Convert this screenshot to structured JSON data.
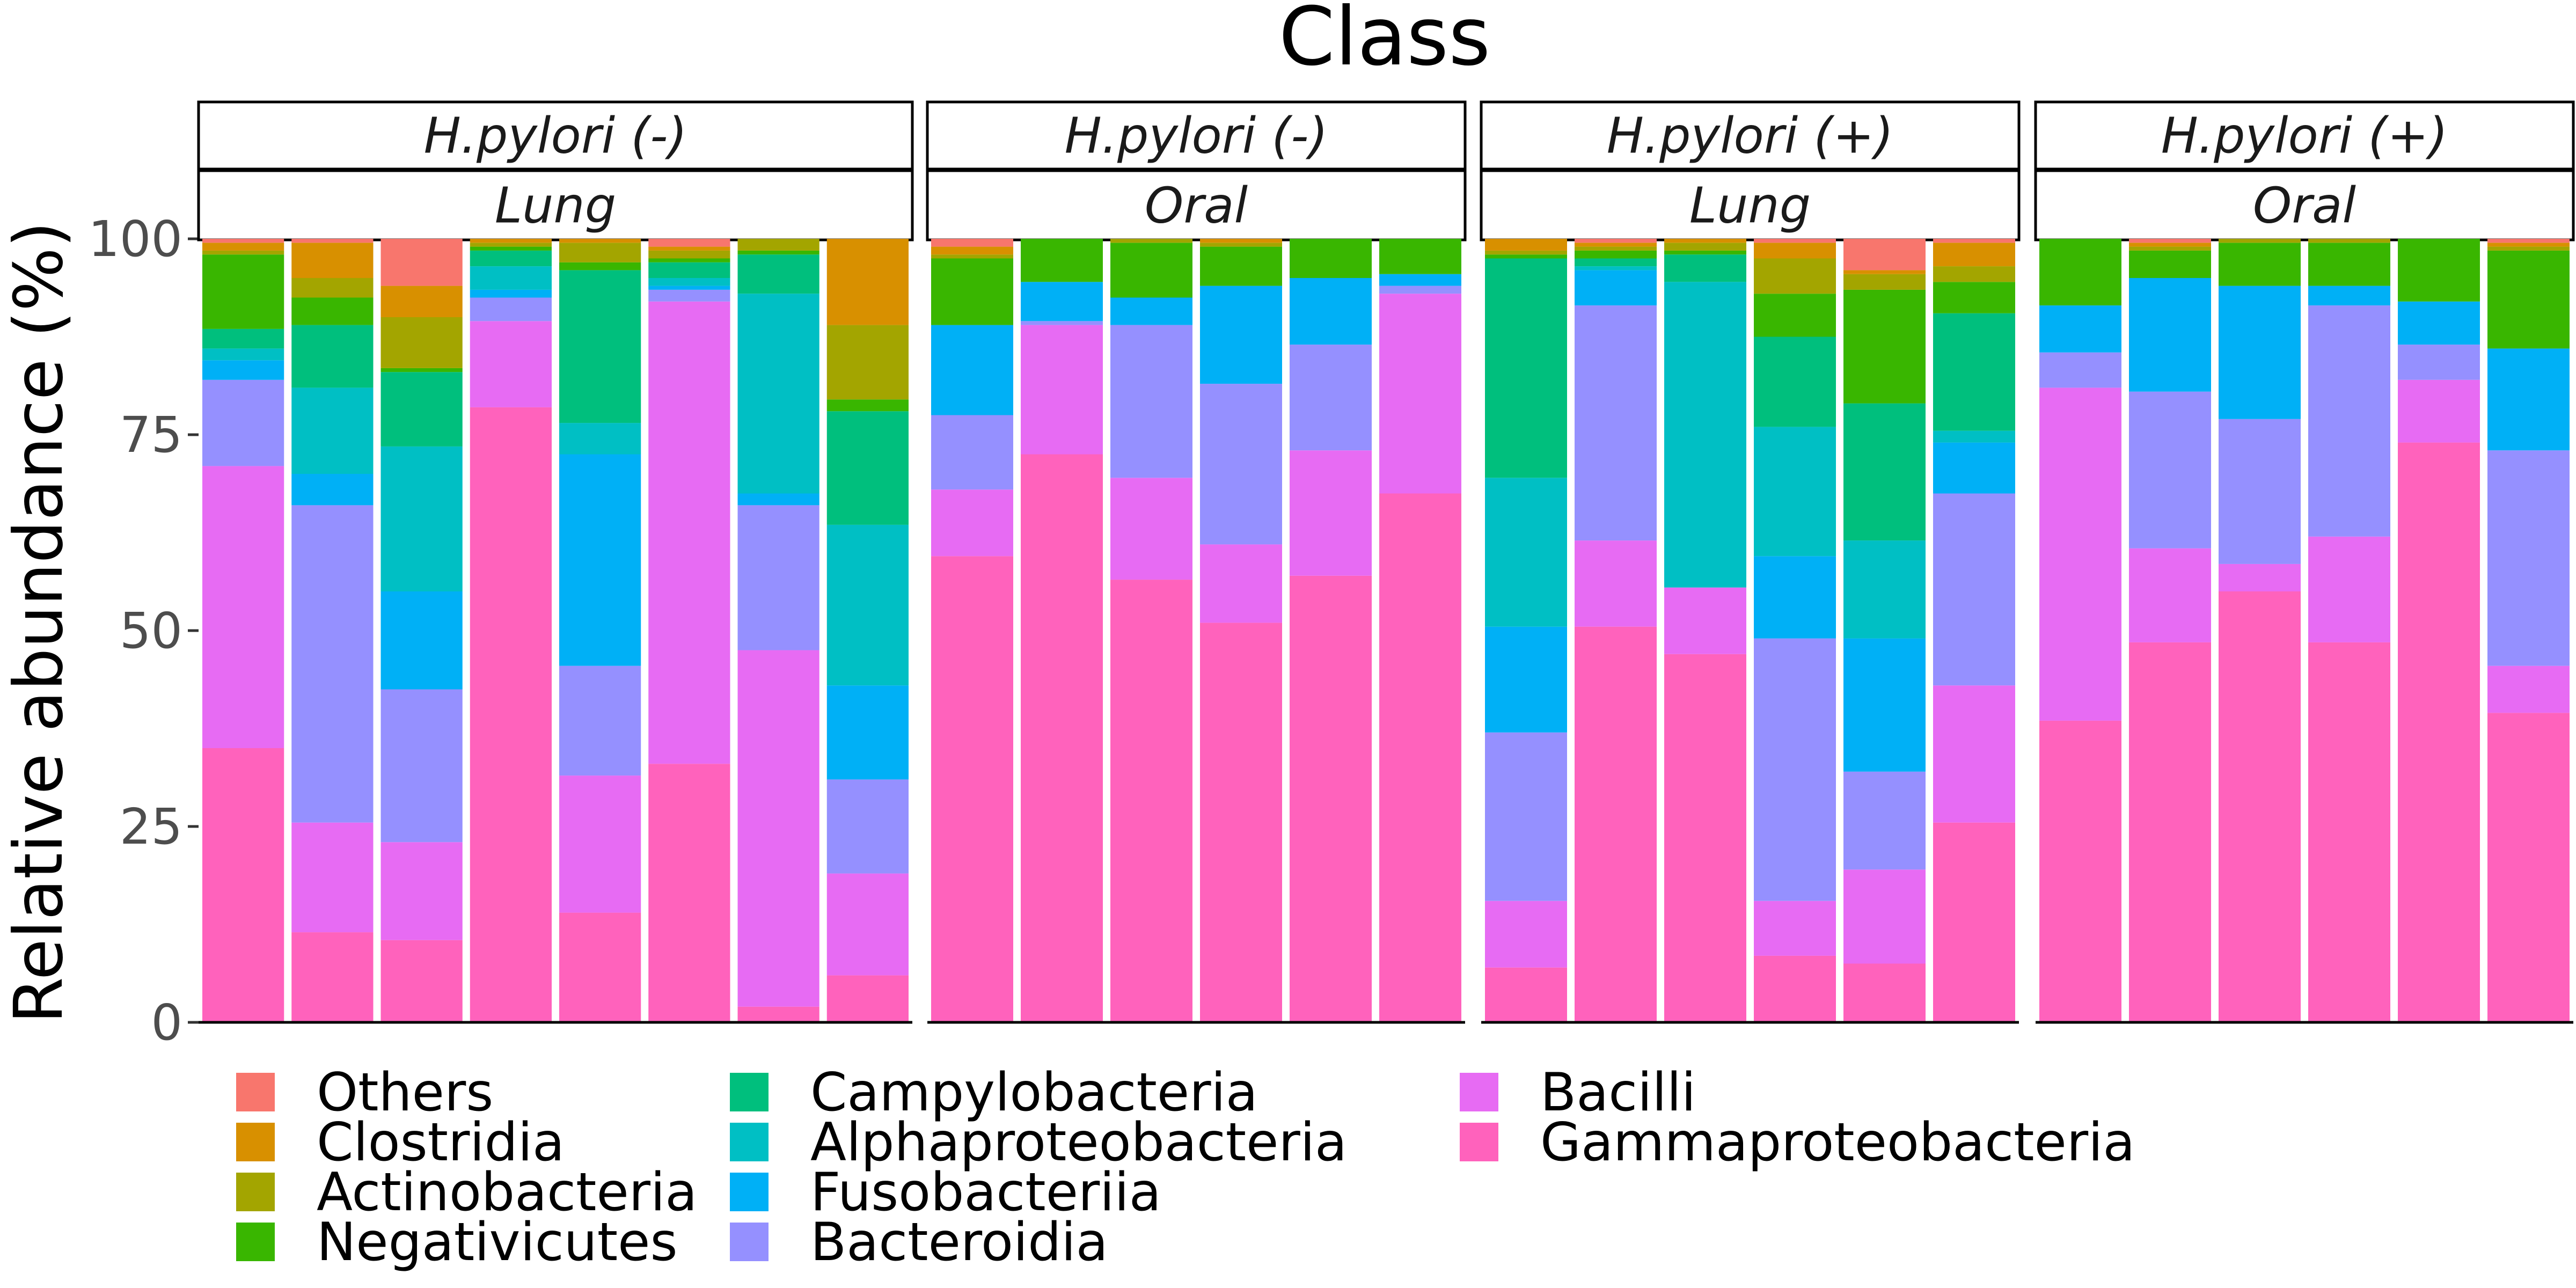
{
  "chart_data": {
    "type": "bar",
    "stacked": true,
    "title": "Class",
    "ylabel": "Relative abundance (%)",
    "xlabel": "",
    "ylim": [
      0,
      118
    ],
    "yticks": [
      0,
      25,
      50,
      75,
      100
    ],
    "legend_position": "bottom-left",
    "series_order_bottom_to_top": [
      "Gammaproteobacteria",
      "Bacilli",
      "Bacteroidia",
      "Fusobacteriia",
      "Alphaproteobacteria",
      "Campylobacteria",
      "Negativicutes",
      "Actinobacteria",
      "Clostridia",
      "Others"
    ],
    "legend_entries": [
      "Others",
      "Clostridia",
      "Actinobacteria",
      "Negativicutes",
      "Campylobacteria",
      "Alphaproteobacteria",
      "Fusobacteriia",
      "Bacteroidia",
      "Bacilli",
      "Gammaproteobacteria"
    ],
    "colors": {
      "Others": "#F8766D",
      "Clostridia": "#D89000",
      "Actinobacteria": "#A3A500",
      "Negativicutes": "#39B600",
      "Campylobacteria": "#00BF7D",
      "Alphaproteobacteria": "#00BFC4",
      "Fusobacteriia": "#00B0F6",
      "Bacteroidia": "#9590FF",
      "Bacilli": "#E76BF3",
      "Gammaproteobacteria": "#FF62BC"
    },
    "panels": [
      {
        "strip_top": "H.pylori (-)",
        "strip_bottom": "Lung",
        "bars": [
          {
            "Gammaproteobacteria": 35,
            "Bacilli": 36,
            "Bacteroidia": 11,
            "Fusobacteriia": 2.5,
            "Alphaproteobacteria": 1.5,
            "Campylobacteria": 2.5,
            "Negativicutes": 9.5,
            "Actinobacteria": 0.5,
            "Clostridia": 1,
            "Others": 0.5
          },
          {
            "Gammaproteobacteria": 11.5,
            "Bacilli": 14,
            "Bacteroidia": 40.5,
            "Fusobacteriia": 4,
            "Alphaproteobacteria": 11,
            "Campylobacteria": 8,
            "Negativicutes": 3.5,
            "Actinobacteria": 2.5,
            "Clostridia": 4.5,
            "Others": 0.5
          },
          {
            "Gammaproteobacteria": 10.5,
            "Bacilli": 12.5,
            "Bacteroidia": 19.5,
            "Fusobacteriia": 12.5,
            "Alphaproteobacteria": 18.5,
            "Campylobacteria": 9.5,
            "Negativicutes": 0.5,
            "Actinobacteria": 6.5,
            "Clostridia": 4,
            "Others": 6
          },
          {
            "Gammaproteobacteria": 78.5,
            "Bacilli": 11,
            "Bacteroidia": 3,
            "Fusobacteriia": 1,
            "Alphaproteobacteria": 3,
            "Campylobacteria": 2,
            "Negativicutes": 0.5,
            "Actinobacteria": 0.5,
            "Clostridia": 0.5,
            "Others": 0
          },
          {
            "Gammaproteobacteria": 14,
            "Bacilli": 17.5,
            "Bacteroidia": 14,
            "Fusobacteriia": 27,
            "Alphaproteobacteria": 4,
            "Campylobacteria": 19.5,
            "Negativicutes": 1,
            "Actinobacteria": 2.5,
            "Clostridia": 0.5,
            "Others": 0
          },
          {
            "Gammaproteobacteria": 33,
            "Bacilli": 59,
            "Bacteroidia": 1.5,
            "Fusobacteriia": 0.5,
            "Alphaproteobacteria": 1,
            "Campylobacteria": 2,
            "Negativicutes": 0.5,
            "Actinobacteria": 1,
            "Clostridia": 0.5,
            "Others": 1
          },
          {
            "Gammaproteobacteria": 2,
            "Bacilli": 45.5,
            "Bacteroidia": 18.5,
            "Fusobacteriia": 1.5,
            "Alphaproteobacteria": 25.5,
            "Campylobacteria": 5,
            "Negativicutes": 0.5,
            "Actinobacteria": 1.5,
            "Clostridia": 0,
            "Others": 0
          },
          {
            "Gammaproteobacteria": 6,
            "Bacilli": 13,
            "Bacteroidia": 12,
            "Fusobacteriia": 12,
            "Alphaproteobacteria": 20.5,
            "Campylobacteria": 14.5,
            "Negativicutes": 1.5,
            "Actinobacteria": 9.5,
            "Clostridia": 11,
            "Others": 0
          }
        ]
      },
      {
        "strip_top": "H.pylori (-)",
        "strip_bottom": "Oral",
        "bars": [
          {
            "Gammaproteobacteria": 59.5,
            "Bacilli": 8.5,
            "Bacteroidia": 9.5,
            "Fusobacteriia": 11.5,
            "Alphaproteobacteria": 0,
            "Campylobacteria": 0,
            "Negativicutes": 8.5,
            "Actinobacteria": 0.5,
            "Clostridia": 1,
            "Others": 1
          },
          {
            "Gammaproteobacteria": 72.5,
            "Bacilli": 16.5,
            "Bacteroidia": 0.5,
            "Fusobacteriia": 5,
            "Alphaproteobacteria": 0,
            "Campylobacteria": 0,
            "Negativicutes": 5.5,
            "Actinobacteria": 0,
            "Clostridia": 0,
            "Others": 0
          },
          {
            "Gammaproteobacteria": 56.5,
            "Bacilli": 13,
            "Bacteroidia": 19.5,
            "Fusobacteriia": 3.5,
            "Alphaproteobacteria": 0,
            "Campylobacteria": 0,
            "Negativicutes": 7,
            "Actinobacteria": 0.5,
            "Clostridia": 0,
            "Others": 0
          },
          {
            "Gammaproteobacteria": 51,
            "Bacilli": 10,
            "Bacteroidia": 20.5,
            "Fusobacteriia": 12.5,
            "Alphaproteobacteria": 0,
            "Campylobacteria": 0,
            "Negativicutes": 5,
            "Actinobacteria": 0.5,
            "Clostridia": 0.5,
            "Others": 0
          },
          {
            "Gammaproteobacteria": 57,
            "Bacilli": 16,
            "Bacteroidia": 13.5,
            "Fusobacteriia": 8.5,
            "Alphaproteobacteria": 0,
            "Campylobacteria": 0,
            "Negativicutes": 5,
            "Actinobacteria": 0,
            "Clostridia": 0,
            "Others": 0
          },
          {
            "Gammaproteobacteria": 67.5,
            "Bacilli": 25.5,
            "Bacteroidia": 1,
            "Fusobacteriia": 1.5,
            "Alphaproteobacteria": 0,
            "Campylobacteria": 0,
            "Negativicutes": 4.5,
            "Actinobacteria": 0,
            "Clostridia": 0,
            "Others": 0
          }
        ]
      },
      {
        "strip_top": "H.pylori (+)",
        "strip_bottom": "Lung",
        "bars": [
          {
            "Gammaproteobacteria": 7,
            "Bacilli": 8.5,
            "Bacteroidia": 21.5,
            "Fusobacteriia": 13.5,
            "Alphaproteobacteria": 19,
            "Campylobacteria": 28,
            "Negativicutes": 0.5,
            "Actinobacteria": 0.5,
            "Clostridia": 1.5,
            "Others": 0
          },
          {
            "Gammaproteobacteria": 50.5,
            "Bacilli": 11,
            "Bacteroidia": 30,
            "Fusobacteriia": 4.5,
            "Alphaproteobacteria": 0.5,
            "Campylobacteria": 1,
            "Negativicutes": 1,
            "Actinobacteria": 0.5,
            "Clostridia": 0.5,
            "Others": 0.5
          },
          {
            "Gammaproteobacteria": 47,
            "Bacilli": 8.5,
            "Bacteroidia": 0,
            "Fusobacteriia": 0,
            "Alphaproteobacteria": 39,
            "Campylobacteria": 3.5,
            "Negativicutes": 0.5,
            "Actinobacteria": 1,
            "Clostridia": 0.5,
            "Others": 0
          },
          {
            "Gammaproteobacteria": 8.5,
            "Bacilli": 7,
            "Bacteroidia": 33.5,
            "Fusobacteriia": 10.5,
            "Alphaproteobacteria": 16.5,
            "Campylobacteria": 11.5,
            "Negativicutes": 5.5,
            "Actinobacteria": 4.5,
            "Clostridia": 2,
            "Others": 0.5
          },
          {
            "Gammaproteobacteria": 7.5,
            "Bacilli": 12,
            "Bacteroidia": 12.5,
            "Fusobacteriia": 17,
            "Alphaproteobacteria": 12.5,
            "Campylobacteria": 17.5,
            "Negativicutes": 14.5,
            "Actinobacteria": 2,
            "Clostridia": 0.5,
            "Others": 4
          },
          {
            "Gammaproteobacteria": 25.5,
            "Bacilli": 17.5,
            "Bacteroidia": 24.5,
            "Fusobacteriia": 6.5,
            "Alphaproteobacteria": 1.5,
            "Campylobacteria": 15,
            "Negativicutes": 4,
            "Actinobacteria": 2,
            "Clostridia": 3,
            "Others": 0.5
          }
        ]
      },
      {
        "strip_top": "H.pylori (+)",
        "strip_bottom": "Oral",
        "bars": [
          {
            "Gammaproteobacteria": 38.5,
            "Bacilli": 42.5,
            "Bacteroidia": 4.5,
            "Fusobacteriia": 6,
            "Alphaproteobacteria": 0,
            "Campylobacteria": 0,
            "Negativicutes": 8.5,
            "Actinobacteria": 0,
            "Clostridia": 0,
            "Others": 0
          },
          {
            "Gammaproteobacteria": 48.5,
            "Bacilli": 12,
            "Bacteroidia": 20,
            "Fusobacteriia": 14.5,
            "Alphaproteobacteria": 0,
            "Campylobacteria": 0,
            "Negativicutes": 3.5,
            "Actinobacteria": 0.5,
            "Clostridia": 0.5,
            "Others": 0.5
          },
          {
            "Gammaproteobacteria": 55,
            "Bacilli": 3.5,
            "Bacteroidia": 18.5,
            "Fusobacteriia": 17,
            "Alphaproteobacteria": 0,
            "Campylobacteria": 0,
            "Negativicutes": 5.5,
            "Actinobacteria": 0.5,
            "Clostridia": 0,
            "Others": 0
          },
          {
            "Gammaproteobacteria": 48.5,
            "Bacilli": 13.5,
            "Bacteroidia": 29.5,
            "Fusobacteriia": 2.5,
            "Alphaproteobacteria": 0,
            "Campylobacteria": 0,
            "Negativicutes": 5.5,
            "Actinobacteria": 0.5,
            "Clostridia": 0,
            "Others": 0
          },
          {
            "Gammaproteobacteria": 74,
            "Bacilli": 8,
            "Bacteroidia": 4.5,
            "Fusobacteriia": 5.5,
            "Alphaproteobacteria": 0,
            "Campylobacteria": 0,
            "Negativicutes": 8,
            "Actinobacteria": 0,
            "Clostridia": 0,
            "Others": 0
          },
          {
            "Gammaproteobacteria": 39.5,
            "Bacilli": 6,
            "Bacteroidia": 27.5,
            "Fusobacteriia": 13,
            "Alphaproteobacteria": 0,
            "Campylobacteria": 0,
            "Negativicutes": 12.5,
            "Actinobacteria": 0.5,
            "Clostridia": 0.5,
            "Others": 1
          }
        ]
      }
    ]
  }
}
